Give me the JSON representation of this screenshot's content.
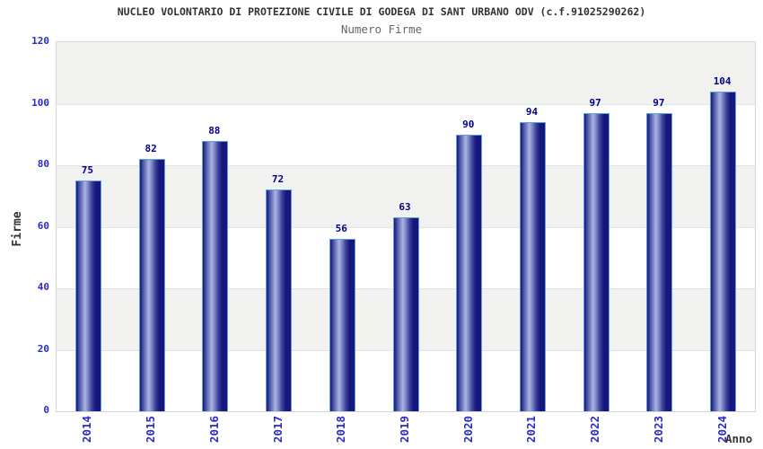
{
  "chart_data": {
    "type": "bar",
    "title": "NUCLEO VOLONTARIO DI PROTEZIONE CIVILE DI GODEGA DI SANT URBANO ODV (c.f.91025290262)",
    "subtitle": "Numero Firme",
    "categories": [
      "2014",
      "2015",
      "2016",
      "2017",
      "2018",
      "2019",
      "2020",
      "2021",
      "2022",
      "2023",
      "2024"
    ],
    "values": [
      75,
      82,
      88,
      72,
      56,
      63,
      90,
      94,
      97,
      97,
      104
    ],
    "xlabel": "Anno",
    "ylabel": "Firme",
    "ylim": [
      0,
      120
    ],
    "yticks": [
      0,
      20,
      40,
      60,
      80,
      100,
      120
    ],
    "grid": "horizontal-bands-alternating",
    "legend": "none",
    "colors": {
      "title": "#333333",
      "subtitle": "#666666",
      "tick_label": "#2a2ac9",
      "value_label": "#00008c",
      "band_gray": "#f1f1ef",
      "grid_line": "#e3e3e3",
      "plot_border": "#d6d6d6",
      "bar_border": "#5f9fe0",
      "bar_dark": "#16167c",
      "bar_mid": "#4a55a5",
      "bar_light": "#aab4e4"
    }
  }
}
